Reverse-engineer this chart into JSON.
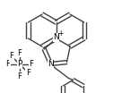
{
  "background": "#ffffff",
  "line_color": "#404040",
  "text_color": "#000000",
  "line_width": 1.0,
  "font_size": 6.5,
  "small_font_size": 5.5,
  "xlim": [
    0,
    155
  ],
  "ylim": [
    0,
    104
  ]
}
